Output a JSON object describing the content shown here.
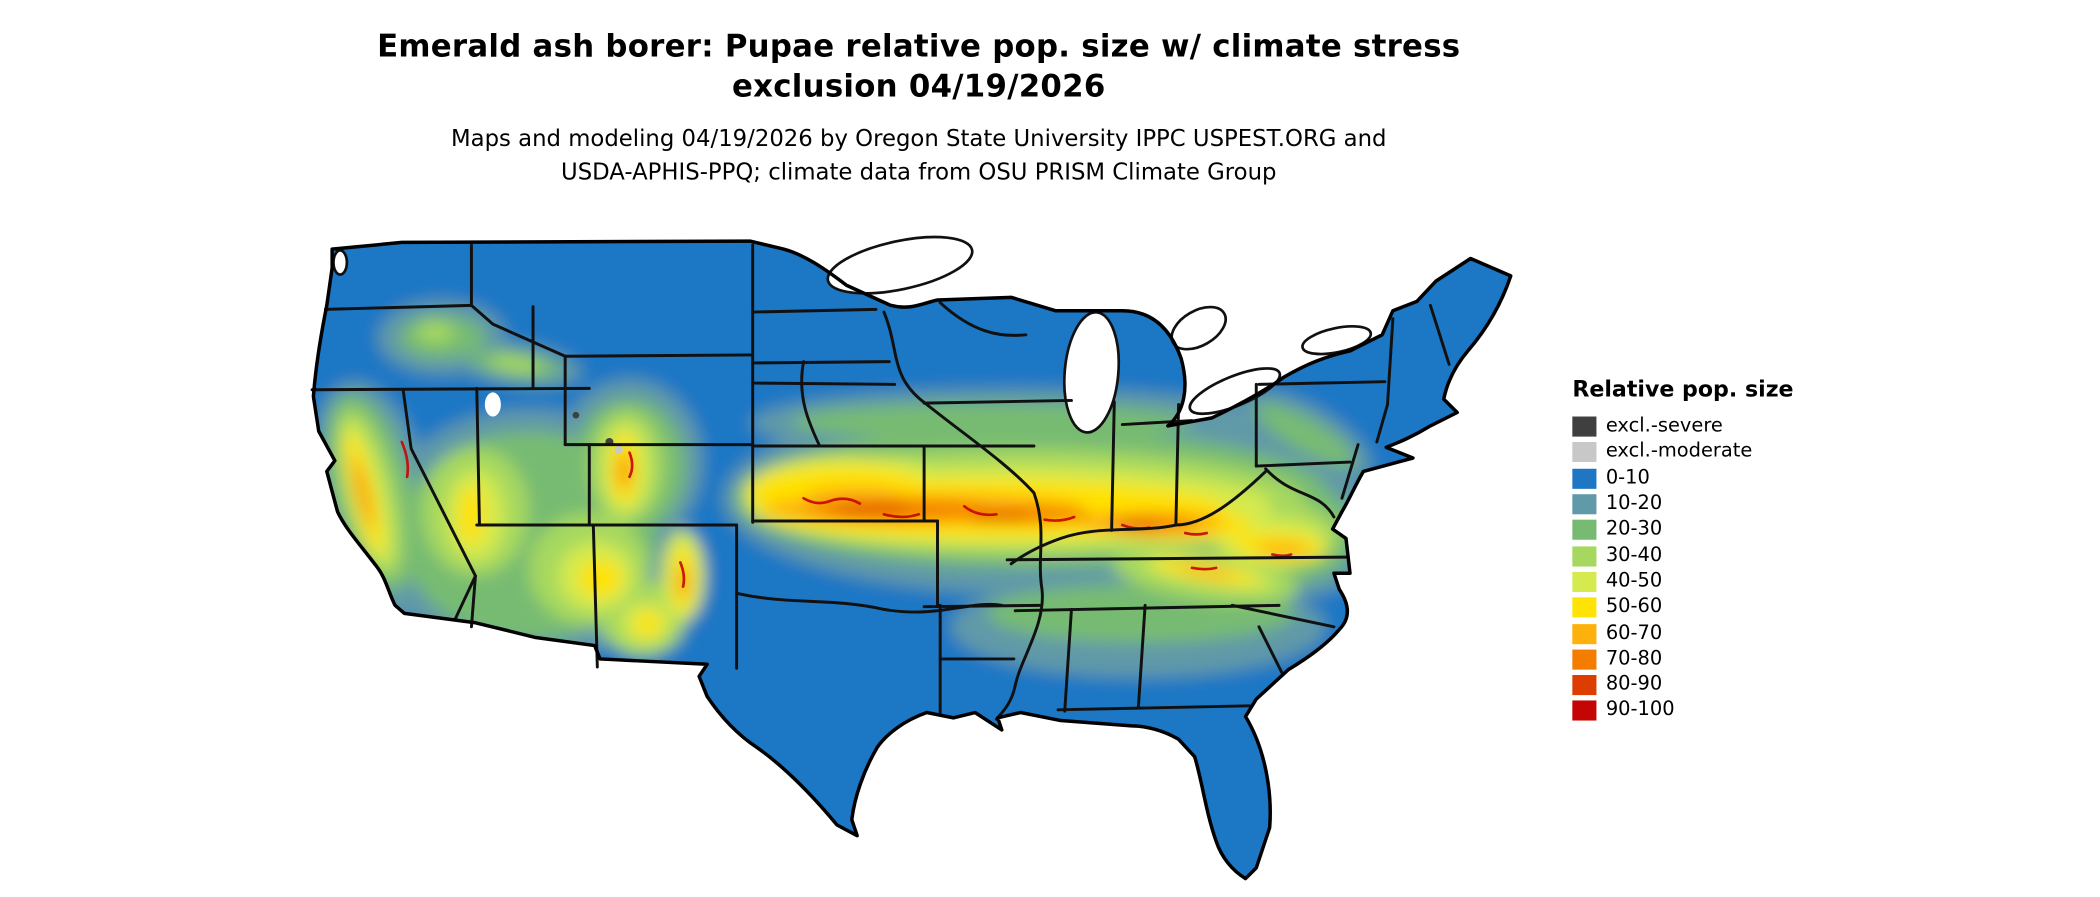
{
  "title": {
    "line1": "Emerald ash borer: Pupae relative pop. size w/ climate stress",
    "line2": "exclusion 04/19/2026"
  },
  "subtitle": {
    "line1": "Maps and modeling 04/19/2026 by Oregon State University IPPC USPEST.ORG and",
    "line2": "USDA-APHIS-PPQ; climate data from OSU PRISM Climate Group"
  },
  "legend": {
    "title": "Relative pop. size",
    "items": [
      {
        "label": "excl.-severe",
        "color": "#3f3f3f"
      },
      {
        "label": "excl.-moderate",
        "color": "#c8c8c8"
      },
      {
        "label": "0-10",
        "color": "#1f77c4"
      },
      {
        "label": "10-20",
        "color": "#6099a8"
      },
      {
        "label": "20-30",
        "color": "#77bb72"
      },
      {
        "label": "30-40",
        "color": "#a6d85f"
      },
      {
        "label": "40-50",
        "color": "#d4ea4e"
      },
      {
        "label": "50-60",
        "color": "#ffe206"
      },
      {
        "label": "60-70",
        "color": "#fdb10a"
      },
      {
        "label": "70-80",
        "color": "#f47d00"
      },
      {
        "label": "80-90",
        "color": "#dd3d00"
      },
      {
        "label": "90-100",
        "color": "#c50503"
      }
    ]
  }
}
